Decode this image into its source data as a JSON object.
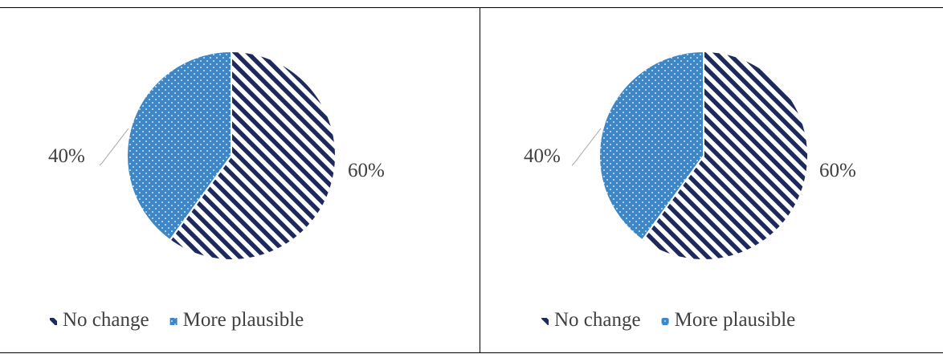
{
  "chart_data": [
    {
      "type": "pie",
      "categories": [
        "No change",
        "More plausible"
      ],
      "values": [
        60,
        40
      ],
      "labels": [
        "60%",
        "40%"
      ],
      "legend": [
        "No change",
        "More plausible"
      ],
      "legend_position": "bottom",
      "colors": {
        "No change": "#1f2a5c",
        "More plausible": "#3d87c6"
      },
      "patterns": {
        "No change": "diagonal-stripes",
        "More plausible": "dotted"
      }
    },
    {
      "type": "pie",
      "categories": [
        "No change",
        "More plausible"
      ],
      "values": [
        60,
        40
      ],
      "labels": [
        "60%",
        "40%"
      ],
      "legend": [
        "No change",
        "More plausible"
      ],
      "legend_position": "bottom",
      "colors": {
        "No change": "#1f2a5c",
        "More plausible": "#3d87c6"
      },
      "patterns": {
        "No change": "diagonal-stripes",
        "More plausible": "dotted"
      }
    }
  ]
}
